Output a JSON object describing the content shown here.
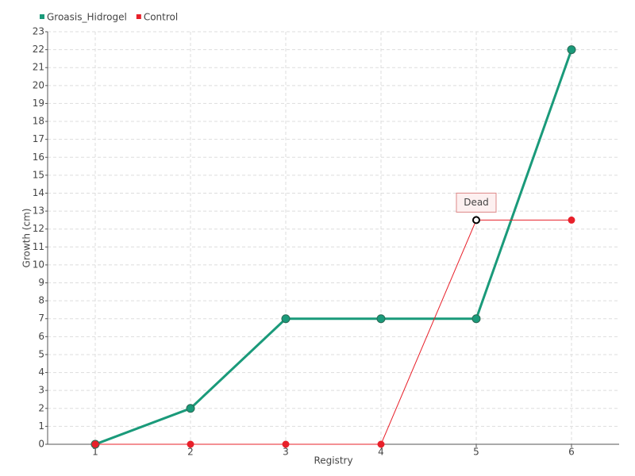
{
  "chart_data": {
    "type": "line",
    "x_label": "Registry",
    "y_label": "Growth (cm)",
    "categories": [
      "1",
      "2",
      "3",
      "4",
      "5",
      "6"
    ],
    "series": [
      {
        "name": "Groasis_Hidrogel",
        "color": "#1a9a7a",
        "values": [
          0,
          2,
          7,
          7,
          7,
          22
        ]
      },
      {
        "name": "Control",
        "color": "#e8202a",
        "values": [
          0,
          0,
          0,
          0,
          12.5,
          12.5
        ],
        "annotations": [
          null,
          null,
          null,
          null,
          "Dead",
          null
        ]
      }
    ],
    "ylim": [
      0,
      23
    ],
    "yticks": [
      0,
      1,
      2,
      3,
      4,
      5,
      6,
      7,
      8,
      9,
      10,
      11,
      12,
      13,
      14,
      15,
      16,
      17,
      18,
      19,
      20,
      21,
      22,
      23
    ],
    "grid": true,
    "legend": "top-left"
  }
}
